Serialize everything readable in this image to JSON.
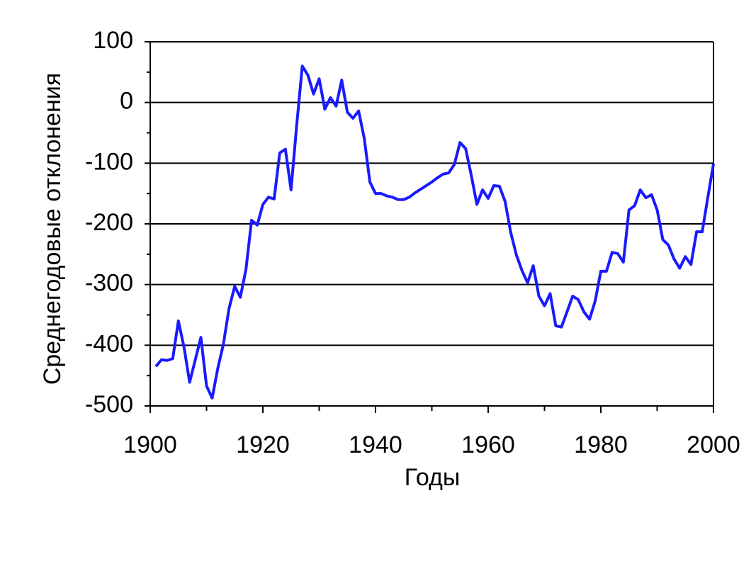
{
  "chart_data": {
    "type": "line",
    "xlabel": "Годы",
    "ylabel": "Среднегодовые отклонения",
    "x": [
      1901,
      1902,
      1903,
      1904,
      1905,
      1906,
      1907,
      1908,
      1909,
      1910,
      1911,
      1912,
      1913,
      1914,
      1915,
      1916,
      1917,
      1918,
      1919,
      1920,
      1921,
      1922,
      1923,
      1924,
      1925,
      1926,
      1927,
      1928,
      1929,
      1930,
      1931,
      1932,
      1933,
      1934,
      1935,
      1936,
      1937,
      1938,
      1939,
      1940,
      1941,
      1942,
      1943,
      1944,
      1945,
      1946,
      1947,
      1948,
      1949,
      1950,
      1951,
      1952,
      1953,
      1954,
      1955,
      1956,
      1957,
      1958,
      1959,
      1960,
      1961,
      1962,
      1963,
      1964,
      1965,
      1966,
      1967,
      1968,
      1969,
      1970,
      1971,
      1972,
      1973,
      1974,
      1975,
      1976,
      1977,
      1978,
      1979,
      1980,
      1981,
      1982,
      1983,
      1984,
      1985,
      1986,
      1987,
      1988,
      1989,
      1990,
      1991,
      1992,
      1993,
      1994,
      1995,
      1996,
      1997,
      1998,
      1999,
      2000
    ],
    "series": [
      {
        "color": "#1a1aff",
        "values": [
          -435,
          -424,
          -425,
          -422,
          -360,
          -403,
          -461,
          -424,
          -387,
          -467,
          -487,
          -438,
          -398,
          -339,
          -303,
          -321,
          -275,
          -194,
          -202,
          -168,
          -156,
          -159,
          -83,
          -77,
          -144,
          -38,
          60,
          45,
          14,
          39,
          -11,
          8,
          -6,
          37,
          -16,
          -26,
          -14,
          -59,
          -131,
          -150,
          -150,
          -154,
          -156,
          -160,
          -160,
          -156,
          -149,
          -143,
          -137,
          -131,
          -124,
          -118,
          -116,
          -102,
          -66,
          -76,
          -120,
          -168,
          -144,
          -158,
          -137,
          -138,
          -163,
          -214,
          -251,
          -277,
          -297,
          -269,
          -319,
          -335,
          -315,
          -368,
          -370,
          -345,
          -319,
          -325,
          -345,
          -357,
          -327,
          -278,
          -278,
          -247,
          -249,
          -263,
          -177,
          -170,
          -144,
          -157,
          -152,
          -177,
          -226,
          -235,
          -258,
          -273,
          -254,
          -267,
          -213,
          -213,
          -156,
          -101
        ]
      }
    ],
    "xlim": [
      1900,
      2000
    ],
    "xticks": [
      1900,
      1920,
      1940,
      1960,
      1980,
      2000
    ],
    "ylim": [
      -500,
      100
    ],
    "yticks": [
      -500,
      -400,
      -300,
      -200,
      -100,
      0,
      100
    ],
    "grid": true
  }
}
